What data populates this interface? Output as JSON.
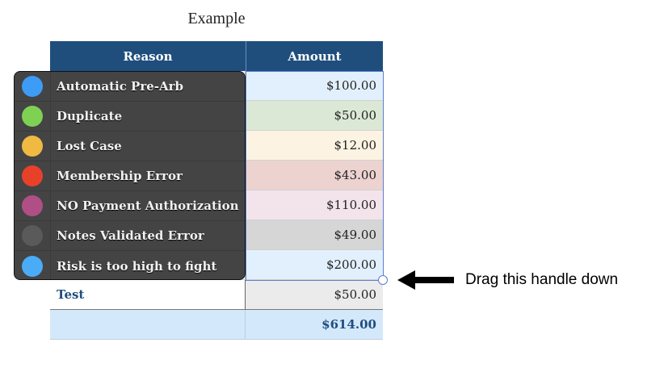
{
  "title": "Example",
  "table": {
    "headers": [
      "Reason",
      "Amount"
    ],
    "rows": [
      {
        "reason": "Automatic Pre-Arb",
        "amount": "$100.00",
        "color": "#e2f0fd"
      },
      {
        "reason": "Duplicate",
        "amount": "$50.00",
        "color": "#dce8d6"
      },
      {
        "reason": "Lost Case",
        "amount": "$12.00",
        "color": "#fcf3e2"
      },
      {
        "reason": "Membership Error",
        "amount": "$43.00",
        "color": "#ecd3d0"
      },
      {
        "reason": "NO Payment Authorization",
        "amount": "$110.00",
        "color": "#f3e4ec"
      },
      {
        "reason": "Notes Validated Error",
        "amount": "$49.00",
        "color": "#d6d6d6"
      },
      {
        "reason": "Risk is too high to fight",
        "amount": "$200.00",
        "color": "#e2f0fd"
      },
      {
        "reason": "Test",
        "amount": "$50.00",
        "color": "#ebebeb"
      }
    ],
    "total": "$614.00"
  },
  "popup": {
    "items": [
      {
        "label": "Automatic Pre-Arb",
        "color": "#3d9cf5"
      },
      {
        "label": "Duplicate",
        "color": "#7ed152"
      },
      {
        "label": "Lost Case",
        "color": "#f0ba42"
      },
      {
        "label": "Membership Error",
        "color": "#e8412a"
      },
      {
        "label": "NO Payment Authorization",
        "color": "#b04f86"
      },
      {
        "label": "Notes Validated Error",
        "color": "#5a5a5a"
      },
      {
        "label": "Risk is too high to fight",
        "color": "#4aacf7"
      }
    ]
  },
  "annotation": "Drag this handle down"
}
